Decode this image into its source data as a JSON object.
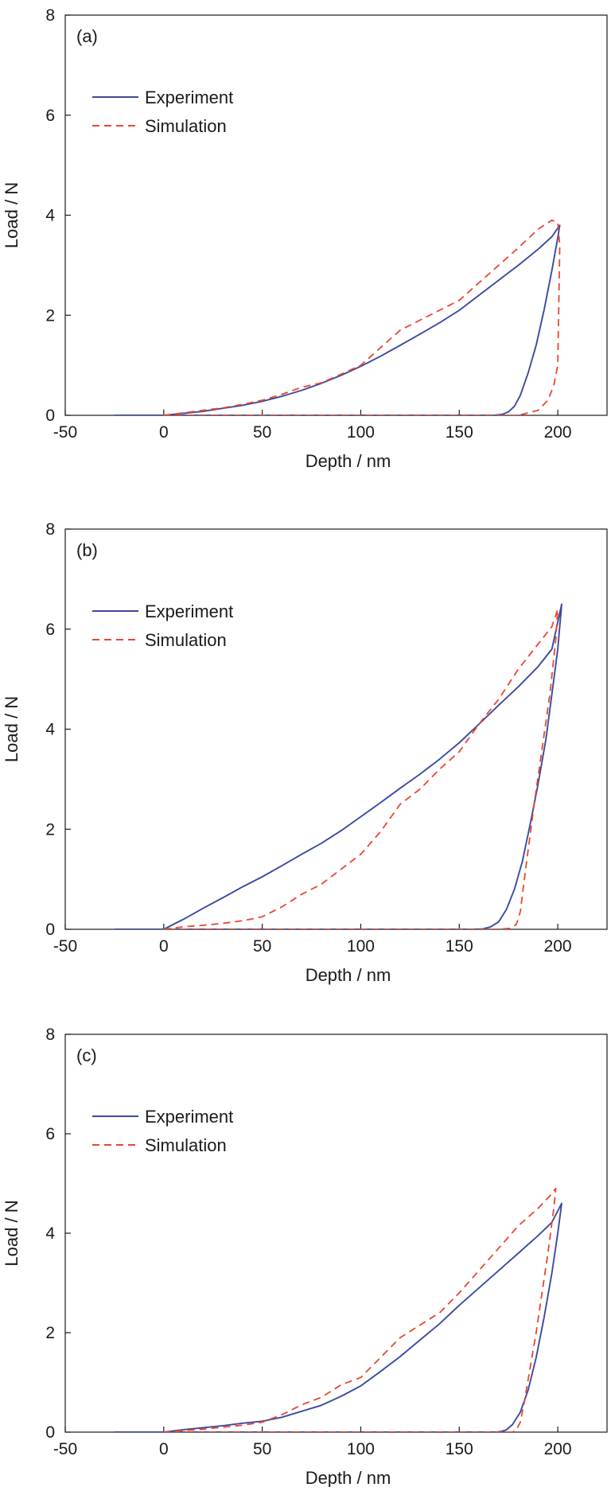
{
  "colors": {
    "experiment": "#3b4aa0",
    "simulation": "#e8472f",
    "axis": "#1a1a1a"
  },
  "chart_data": [
    {
      "type": "line",
      "panel_label": "(a)",
      "xlabel": "Depth / nm",
      "ylabel": "Load / N",
      "xlim": [
        -50,
        225
      ],
      "ylim": [
        0,
        8
      ],
      "xticks": [
        "-50",
        "0",
        "50",
        "100",
        "150",
        "200"
      ],
      "yticks": [
        "0",
        "2",
        "4",
        "6",
        "8"
      ],
      "legend_position": "upper-left",
      "series": [
        {
          "name": "Experiment",
          "style": "solid",
          "x": [
            -25,
            0,
            10,
            20,
            30,
            40,
            50,
            60,
            70,
            80,
            90,
            100,
            110,
            120,
            130,
            140,
            150,
            160,
            170,
            180,
            190,
            197,
            201,
            200,
            197,
            193,
            189,
            185,
            181,
            178,
            175,
            172,
            168,
            160,
            150,
            130,
            100,
            70,
            50,
            30,
            10,
            0
          ],
          "y": [
            0,
            0,
            0.04,
            0.08,
            0.14,
            0.2,
            0.28,
            0.38,
            0.5,
            0.64,
            0.8,
            0.98,
            1.18,
            1.4,
            1.62,
            1.85,
            2.1,
            2.4,
            2.7,
            3.0,
            3.32,
            3.57,
            3.8,
            3.55,
            2.9,
            2.1,
            1.4,
            0.85,
            0.4,
            0.18,
            0.07,
            0.02,
            0,
            0,
            0,
            0,
            0,
            0,
            0,
            0,
            0,
            0
          ]
        },
        {
          "name": "Simulation",
          "style": "dashed",
          "x": [
            0,
            10,
            20,
            30,
            40,
            50,
            60,
            70,
            80,
            90,
            100,
            110,
            120,
            130,
            140,
            150,
            160,
            170,
            180,
            190,
            197,
            200,
            201,
            200,
            198,
            195,
            190,
            180,
            170,
            150,
            100,
            50,
            10,
            0,
            0
          ],
          "y": [
            0,
            0.05,
            0.1,
            0.15,
            0.22,
            0.3,
            0.42,
            0.56,
            0.65,
            0.82,
            1.0,
            1.35,
            1.7,
            1.9,
            2.1,
            2.3,
            2.65,
            3.0,
            3.35,
            3.72,
            3.9,
            3.85,
            3.4,
            1.0,
            0.6,
            0.3,
            0.1,
            0,
            0,
            0,
            0,
            0,
            0,
            0,
            0.12
          ]
        }
      ]
    },
    {
      "type": "line",
      "panel_label": "(b)",
      "xlabel": "Depth / nm",
      "ylabel": "Load / N",
      "xlim": [
        -50,
        225
      ],
      "ylim": [
        0,
        8
      ],
      "xticks": [
        "-50",
        "0",
        "50",
        "100",
        "150",
        "200"
      ],
      "yticks": [
        "0",
        "2",
        "4",
        "6",
        "8"
      ],
      "legend_position": "upper-left",
      "series": [
        {
          "name": "Experiment",
          "style": "solid",
          "x": [
            -25,
            0,
            10,
            20,
            30,
            40,
            50,
            60,
            70,
            80,
            90,
            100,
            110,
            120,
            130,
            140,
            150,
            160,
            170,
            180,
            190,
            197,
            202,
            200,
            197,
            194,
            190,
            186,
            182,
            178,
            174,
            170,
            166,
            162,
            158,
            150,
            100,
            50,
            0
          ],
          "y": [
            0,
            0,
            0.2,
            0.42,
            0.63,
            0.85,
            1.05,
            1.27,
            1.5,
            1.72,
            1.97,
            2.25,
            2.53,
            2.82,
            3.1,
            3.4,
            3.73,
            4.1,
            4.48,
            4.85,
            5.25,
            5.6,
            6.5,
            5.6,
            4.7,
            3.8,
            2.9,
            2.1,
            1.35,
            0.8,
            0.4,
            0.15,
            0.05,
            0.01,
            0,
            0,
            0,
            0,
            0
          ]
        },
        {
          "name": "Simulation",
          "style": "dashed",
          "x": [
            0,
            10,
            20,
            30,
            40,
            50,
            60,
            70,
            80,
            90,
            100,
            110,
            120,
            130,
            140,
            150,
            160,
            170,
            180,
            190,
            197,
            200,
            199,
            196,
            192,
            188,
            184,
            181,
            179,
            176,
            170,
            150,
            100,
            50,
            0
          ],
          "y": [
            0,
            0.05,
            0.08,
            0.12,
            0.17,
            0.25,
            0.45,
            0.7,
            0.9,
            1.2,
            1.5,
            1.95,
            2.5,
            2.8,
            3.2,
            3.55,
            4.1,
            4.6,
            5.2,
            5.7,
            6.05,
            6.4,
            5.8,
            4.7,
            3.6,
            2.5,
            1.3,
            0.35,
            0.1,
            0.02,
            0,
            0,
            0,
            0,
            0
          ]
        }
      ]
    },
    {
      "type": "line",
      "panel_label": "(c)",
      "xlabel": "Depth / nm",
      "ylabel": "Load / N",
      "xlim": [
        -50,
        225
      ],
      "ylim": [
        0,
        8
      ],
      "xticks": [
        "-50",
        "0",
        "50",
        "100",
        "150",
        "200"
      ],
      "yticks": [
        "0",
        "2",
        "4",
        "6",
        "8"
      ],
      "legend_position": "upper-left",
      "series": [
        {
          "name": "Experiment",
          "style": "solid",
          "x": [
            -25,
            0,
            10,
            20,
            30,
            40,
            50,
            60,
            70,
            80,
            90,
            100,
            110,
            120,
            130,
            140,
            150,
            160,
            170,
            180,
            190,
            197,
            202,
            200,
            197,
            193,
            189,
            185,
            181,
            177,
            174,
            172,
            169,
            160,
            150,
            100,
            50,
            0
          ],
          "y": [
            0,
            0,
            0.05,
            0.09,
            0.13,
            0.18,
            0.22,
            0.3,
            0.42,
            0.54,
            0.72,
            0.93,
            1.22,
            1.52,
            1.85,
            2.18,
            2.55,
            2.9,
            3.25,
            3.6,
            3.95,
            4.22,
            4.6,
            4.0,
            3.2,
            2.3,
            1.5,
            0.85,
            0.4,
            0.15,
            0.05,
            0.02,
            0,
            0,
            0,
            0,
            0,
            0
          ]
        },
        {
          "name": "Simulation",
          "style": "dashed",
          "x": [
            0,
            10,
            20,
            30,
            40,
            50,
            60,
            70,
            80,
            90,
            100,
            110,
            120,
            130,
            140,
            150,
            160,
            170,
            180,
            190,
            196,
            199,
            198,
            195,
            192,
            189,
            186,
            183,
            181,
            179,
            177,
            170,
            150,
            100,
            50,
            0
          ],
          "y": [
            0,
            0.03,
            0.06,
            0.1,
            0.14,
            0.2,
            0.35,
            0.55,
            0.7,
            0.95,
            1.1,
            1.5,
            1.9,
            2.15,
            2.4,
            2.8,
            3.25,
            3.7,
            4.15,
            4.5,
            4.75,
            4.9,
            4.5,
            3.6,
            2.8,
            2.0,
            1.3,
            0.6,
            0.2,
            0.05,
            0,
            0,
            0,
            0,
            0,
            0
          ]
        }
      ]
    }
  ]
}
